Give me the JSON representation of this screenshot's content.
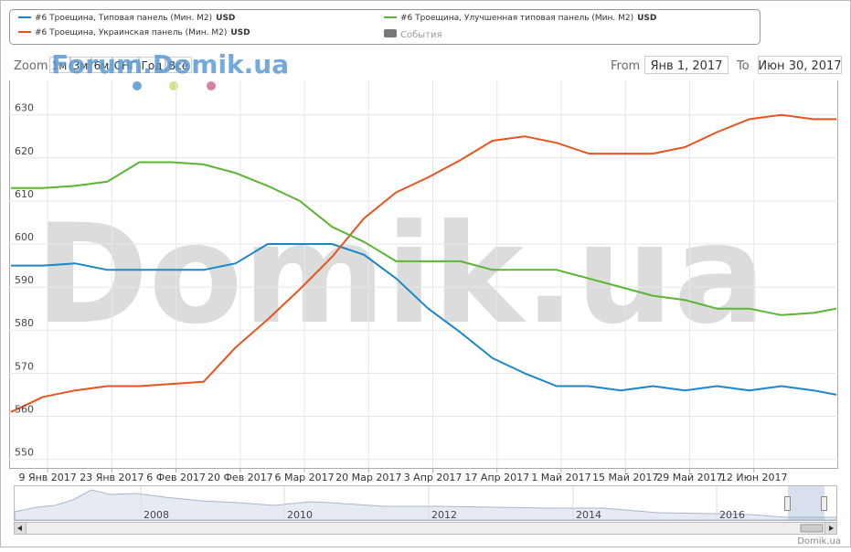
{
  "chart_data": {
    "type": "line",
    "watermark": "Domik.ua",
    "watermark_small": "Forum.Domik.ua",
    "footer": "Domik.ua",
    "zoom_label": "Zoom",
    "zoom_buttons": [
      "1м",
      "3м",
      "6м",
      "СНГ",
      "Год",
      "Всё"
    ],
    "from_label": "From",
    "from_value": "Янв 1, 2017",
    "to_label": "To",
    "to_value": "Июн 30, 2017",
    "legend_unit": "USD",
    "events_label": "События",
    "events_color": "#777777",
    "x": [
      "2017-01-01",
      "2017-01-08",
      "2017-01-15",
      "2017-01-22",
      "2017-01-29",
      "2017-02-05",
      "2017-02-12",
      "2017-02-19",
      "2017-02-26",
      "2017-03-05",
      "2017-03-12",
      "2017-03-19",
      "2017-03-26",
      "2017-04-02",
      "2017-04-09",
      "2017-04-16",
      "2017-04-23",
      "2017-04-30",
      "2017-05-07",
      "2017-05-14",
      "2017-05-21",
      "2017-05-28",
      "2017-06-04",
      "2017-06-11",
      "2017-06-18",
      "2017-06-25",
      "2017-06-30"
    ],
    "series": [
      {
        "name": "#6 Троещина, Типовая панель (Мин. M2)",
        "color": "#1a87c8",
        "values": [
          595,
          595,
          595.5,
          594,
          594,
          594,
          594,
          595.5,
          600,
          600,
          600,
          597.5,
          592,
          585,
          579.5,
          573.5,
          570,
          567,
          567,
          566,
          567,
          566,
          567,
          566,
          567,
          566,
          565
        ]
      },
      {
        "name": "#6 Троещина, Украинская панель (Мин. M2)",
        "color": "#e8541e",
        "values": [
          561,
          564.5,
          566,
          567,
          567,
          567.5,
          568,
          576,
          582.5,
          589.5,
          597,
          606,
          612,
          615.5,
          619.5,
          624,
          625,
          623.5,
          621,
          621,
          621,
          622.5,
          626,
          629,
          630,
          629,
          629
        ]
      },
      {
        "name": "#6 Троещина, Улучшенная типовая панель (Мин. M2)",
        "color": "#5ab533",
        "values": [
          613,
          613,
          613.5,
          614.5,
          619,
          619,
          618.5,
          616.5,
          613.5,
          610,
          604,
          600.5,
          596,
          596,
          596,
          594,
          594,
          594,
          592,
          590,
          588,
          587,
          585,
          585,
          583.5,
          584,
          585
        ]
      }
    ],
    "xlim": [
      "2017-01-01",
      "2017-06-30"
    ],
    "xticks": [
      {
        "value": "2017-01-09",
        "label": "9 Янв 2017"
      },
      {
        "value": "2017-01-23",
        "label": "23 Янв 2017"
      },
      {
        "value": "2017-02-06",
        "label": "6 Фев 2017"
      },
      {
        "value": "2017-02-20",
        "label": "20 Фев 2017"
      },
      {
        "value": "2017-03-06",
        "label": "6 Мар 2017"
      },
      {
        "value": "2017-03-20",
        "label": "20 Мар 2017"
      },
      {
        "value": "2017-04-03",
        "label": "3 Апр 2017"
      },
      {
        "value": "2017-04-17",
        "label": "17 Апр 2017"
      },
      {
        "value": "2017-05-01",
        "label": "1 Май 2017"
      },
      {
        "value": "2017-05-15",
        "label": "15 Май 2017"
      },
      {
        "value": "2017-05-29",
        "label": "29 Май 2017"
      },
      {
        "value": "2017-06-12",
        "label": "12 Июн 2017"
      }
    ],
    "ylim": [
      548,
      638
    ],
    "yticks": [
      550,
      560,
      570,
      580,
      590,
      600,
      610,
      620,
      630
    ],
    "grid": true,
    "navigator_labels": [
      "2008",
      "2010",
      "2012",
      "2014",
      "2016"
    ]
  }
}
